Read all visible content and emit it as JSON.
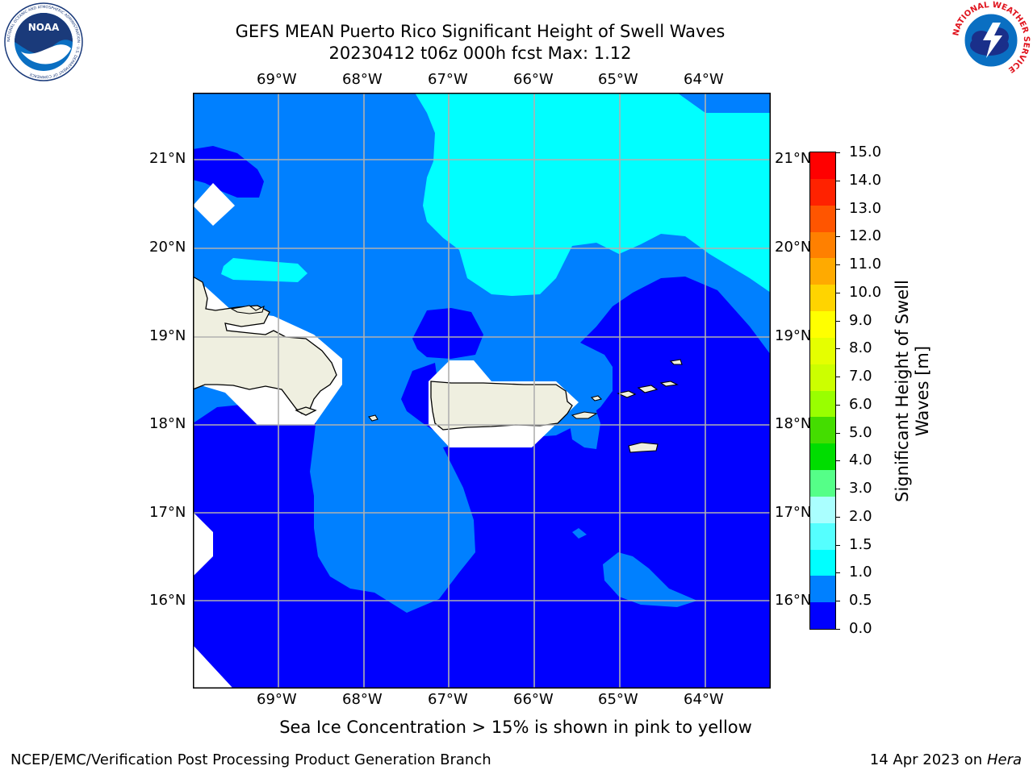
{
  "header": {
    "title_line1": "GEFS MEAN Puerto Rico Significant Height of Swell Waves",
    "title_line2": "20230412 t06z 000h fcst   Max: 1.12"
  },
  "logos": {
    "noaa_text": "NOAA",
    "noaa_ring": "NATIONAL OCEANIC AND ATMOSPHERIC ADMINISTRATION · U.S. DEPARTMENT OF COMMERCE",
    "nws_ring": "NATIONAL WEATHER SERVICE"
  },
  "map": {
    "lon_labels": [
      "69°W",
      "68°W",
      "67°W",
      "66°W",
      "65°W",
      "64°W"
    ],
    "lat_labels": [
      "21°N",
      "20°N",
      "19°N",
      "18°N",
      "17°N",
      "16°N"
    ],
    "lon_range": [
      -69.99,
      -63.25
    ],
    "lat_range": [
      15.0,
      21.75
    ],
    "colors": {
      "ocean_0_0.5": "#0000ff",
      "ocean_0.5_1.0": "#0080ff",
      "ocean_1.0_1.5": "#00ffff",
      "land": "#efefe0",
      "no_data": "#ffffff",
      "grid": "#b0b0b0"
    }
  },
  "colorbar": {
    "label": "Significant Height of Swell Waves [m]",
    "ticks": [
      "15.0",
      "14.0",
      "13.0",
      "12.0",
      "11.0",
      "10.0",
      "9.0",
      "8.0",
      "7.0",
      "6.0",
      "5.0",
      "4.0",
      "3.0",
      "2.0",
      "1.5",
      "1.0",
      "0.5",
      "0.0"
    ],
    "colors_top_to_bottom": [
      "#ff0000",
      "#ff2200",
      "#ff5500",
      "#ff8000",
      "#ffaa00",
      "#ffd400",
      "#ffff00",
      "#e5ff00",
      "#ccff00",
      "#99ff00",
      "#44dd00",
      "#00dd00",
      "#55ff88",
      "#aaffff",
      "#55ffff",
      "#00ffff",
      "#0080ff",
      "#0000ff"
    ]
  },
  "note": "Sea Ice Concentration > 15% is shown in pink to yellow",
  "footer": {
    "left": "NCEP/EMC/Verification Post Processing Product Generation Branch",
    "right_prefix": "14 Apr 2023 on ",
    "right_host": "Hera"
  }
}
